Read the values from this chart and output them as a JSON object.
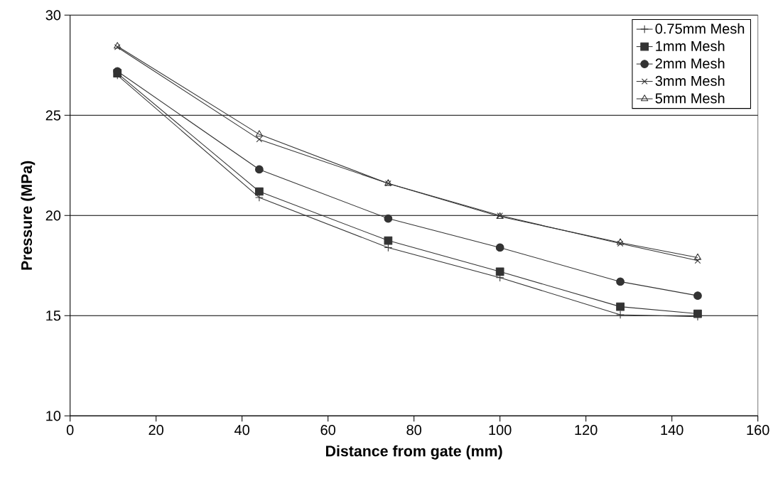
{
  "chart_data": {
    "type": "line",
    "xlabel": "Distance from gate (mm)",
    "ylabel": "Pressure (MPa)",
    "x": [
      11,
      44,
      74,
      100,
      128,
      146
    ],
    "series": [
      {
        "name": "0.75mm Mesh",
        "color": "#333333",
        "marker": "plus",
        "values": [
          27.0,
          20.9,
          18.4,
          16.9,
          15.05,
          14.95
        ]
      },
      {
        "name": "1mm Mesh",
        "color": "#333333",
        "marker": "square",
        "values": [
          27.1,
          21.2,
          18.75,
          17.2,
          15.45,
          15.1
        ]
      },
      {
        "name": "2mm Mesh",
        "color": "#333333",
        "marker": "circle",
        "values": [
          27.2,
          22.3,
          19.85,
          18.4,
          16.7,
          16.0
        ]
      },
      {
        "name": "3mm Mesh",
        "color": "#333333",
        "marker": "cross",
        "values": [
          28.4,
          23.8,
          21.6,
          20.0,
          18.6,
          17.75
        ]
      },
      {
        "name": "5mm Mesh",
        "color": "#333333",
        "marker": "triangle",
        "values": [
          28.45,
          24.05,
          21.6,
          19.95,
          18.65,
          17.9
        ]
      }
    ],
    "xlim": [
      0,
      160
    ],
    "ylim": [
      10,
      30
    ],
    "xticks": [
      0,
      20,
      40,
      60,
      80,
      100,
      120,
      140,
      160
    ],
    "yticks": [
      10,
      15,
      20,
      25,
      30
    ],
    "grid": "y",
    "legend": "top right",
    "line_style": "solid"
  }
}
